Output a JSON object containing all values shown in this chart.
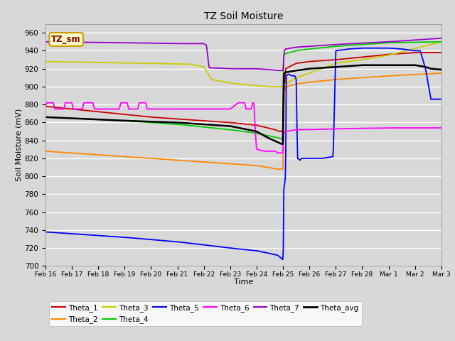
{
  "title": "TZ Soil Moisture",
  "xlabel": "Time",
  "ylabel": "Soil Moisture (mV)",
  "ylim": [
    700,
    970
  ],
  "yticks": [
    700,
    720,
    740,
    760,
    780,
    800,
    820,
    840,
    860,
    880,
    900,
    920,
    940,
    960
  ],
  "plot_bg_color": "#d8d8d8",
  "fig_bg_color": "#d8d8d8",
  "grid_color": "#ffffff",
  "legend_box_color": "#ffffcc",
  "legend_box_edge": "#cc9900",
  "watermark_text": "TZ_sm",
  "series_colors": {
    "Theta_1": "#cc0000",
    "Theta_2": "#ff8800",
    "Theta_3": "#cccc00",
    "Theta_4": "#00cc00",
    "Theta_5": "#0000ff",
    "Theta_6": "#ff00ff",
    "Theta_7": "#9900cc",
    "Theta_avg": "#000000"
  },
  "xtick_labels": [
    "Feb 16",
    "Feb 17",
    "Feb 18",
    "Feb 19",
    "Feb 20",
    "Feb 21",
    "Feb 22",
    "Feb 23",
    "Feb 24",
    "Feb 25",
    "Feb 26",
    "Feb 27",
    "Feb 28",
    "Mar 1",
    "Mar 2",
    "Mar 3"
  ]
}
